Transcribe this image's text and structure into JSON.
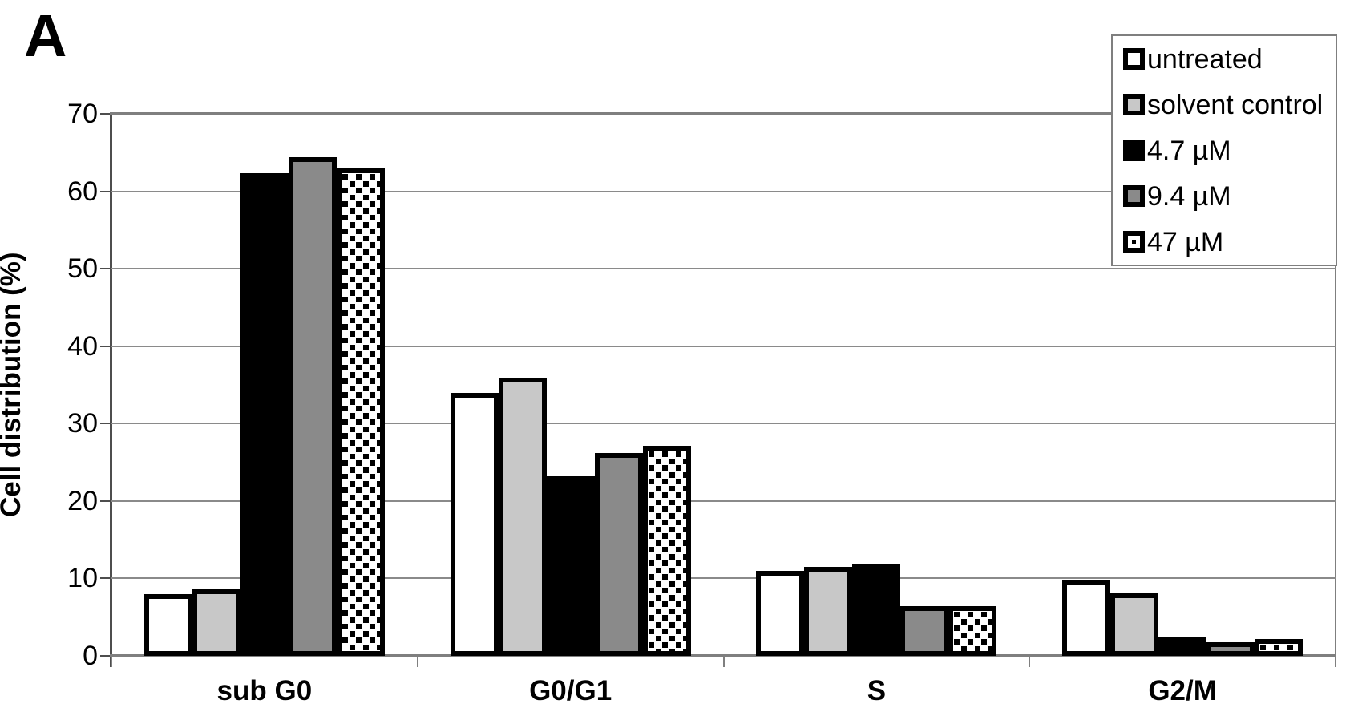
{
  "panel_label": "A",
  "colors": {
    "bar_border": "#000000",
    "grid": "#8a8a8a",
    "axis": "#4d4d4d",
    "legend_border": "#7f7f7f",
    "untreated_fill": "#ffffff",
    "solvent_control_fill": "#c8c8c8",
    "dose_4_7_fill": "#000000",
    "dose_9_4_fill": "#8a8a8a",
    "dose_47_fill": "#ffffff"
  },
  "chart_data": {
    "type": "bar",
    "panel": "A",
    "title": "",
    "xlabel": "",
    "ylabel": "Cell distribution (%)",
    "ylim": [
      0,
      70
    ],
    "ytick_step": 10,
    "yticks": [
      0,
      10,
      20,
      30,
      40,
      50,
      60,
      70
    ],
    "grid": "horizontal",
    "legend_position": "top-right",
    "categories": [
      "sub G0",
      "G0/G1",
      "S",
      "G2/M"
    ],
    "series": [
      {
        "name": "untreated",
        "pattern": "outline",
        "fill": "#ffffff",
        "values": [
          8.0,
          34.0,
          11.0,
          9.7
        ]
      },
      {
        "name": "solvent control",
        "pattern": "solid",
        "fill": "#c8c8c8",
        "values": [
          8.6,
          35.9,
          11.5,
          8.1
        ]
      },
      {
        "name": "4.7 µM",
        "pattern": "solid",
        "fill": "#000000",
        "values": [
          62.3,
          23.2,
          11.9,
          2.5
        ]
      },
      {
        "name": "9.4 µM",
        "pattern": "solid",
        "fill": "#8a8a8a",
        "values": [
          64.4,
          26.2,
          6.4,
          1.8
        ]
      },
      {
        "name": "47 µM",
        "pattern": "dotted",
        "fill": "#ffffff",
        "values": [
          63.0,
          27.1,
          6.4,
          2.2
        ]
      }
    ]
  }
}
